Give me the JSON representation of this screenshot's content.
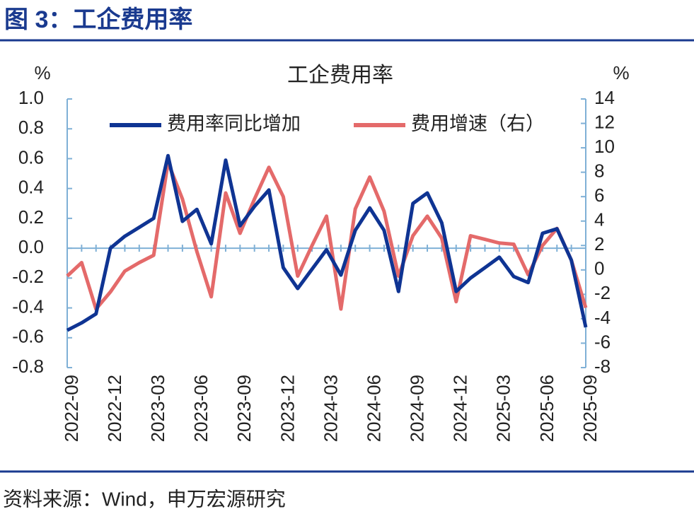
{
  "header": {
    "title": "图 3：工企费用率"
  },
  "chart_data": {
    "type": "line",
    "title": "工企费用率",
    "y_unit": "%",
    "y2_unit": "%",
    "categories": [
      "2022-09",
      null,
      null,
      "2022-12",
      null,
      null,
      "2023-03",
      null,
      null,
      "2023-06",
      null,
      null,
      "2023-09",
      null,
      null,
      "2023-12",
      null,
      null,
      "2024-03",
      null,
      null,
      "2024-06",
      null,
      null,
      "2024-09",
      null,
      null,
      "2024-12",
      null,
      null,
      "2025-03",
      null,
      null,
      "2025-06",
      null,
      null,
      "2025-09"
    ],
    "series": [
      {
        "name": "费用率同比增加",
        "color": "#0f3493",
        "values": [
          -0.55,
          -0.5,
          -0.44,
          0.0,
          0.08,
          0.14,
          0.2,
          0.62,
          0.18,
          0.26,
          0.03,
          0.59,
          0.15,
          0.28,
          0.39,
          -0.13,
          -0.27,
          -0.14,
          -0.01,
          -0.18,
          0.12,
          0.27,
          0.12,
          -0.29,
          0.3,
          0.37,
          0.17,
          -0.29,
          -0.2,
          -0.13,
          -0.06,
          -0.19,
          -0.23,
          0.1,
          0.13,
          -0.08,
          -0.53
        ]
      },
      {
        "name": "费用增速（右）",
        "color": "#e46a6a",
        "axis": "y2",
        "values": [
          -0.5,
          0.6,
          -3.2,
          -1.8,
          -0.1,
          0.6,
          1.2,
          8.8,
          5.8,
          1.5,
          -2.2,
          6.3,
          3.0,
          5.8,
          8.4,
          6.0,
          -0.5,
          2.0,
          4.4,
          -3.2,
          5.0,
          7.6,
          4.8,
          -0.5,
          2.8,
          4.4,
          2.6,
          -2.6,
          2.8,
          2.5,
          2.2,
          2.1,
          -0.4,
          2.0,
          3.4,
          0.8,
          -3.1
        ]
      }
    ],
    "ylim": [
      -0.8,
      1.0
    ],
    "yticks": [
      -0.8,
      -0.6,
      -0.4,
      -0.2,
      {
        "value": 0,
        "label": "0.0"
      },
      0.2,
      0.4,
      0.6,
      0.8,
      {
        "value": 1,
        "label": "1.0"
      }
    ],
    "y2lim": [
      -8,
      14
    ],
    "y2ticks": [
      -8,
      -6,
      -4,
      -2,
      0,
      2,
      4,
      6,
      8,
      10,
      12,
      14
    ],
    "grid": false,
    "legend": "top"
  },
  "source": "资料来源：Wind，申万宏源研究"
}
